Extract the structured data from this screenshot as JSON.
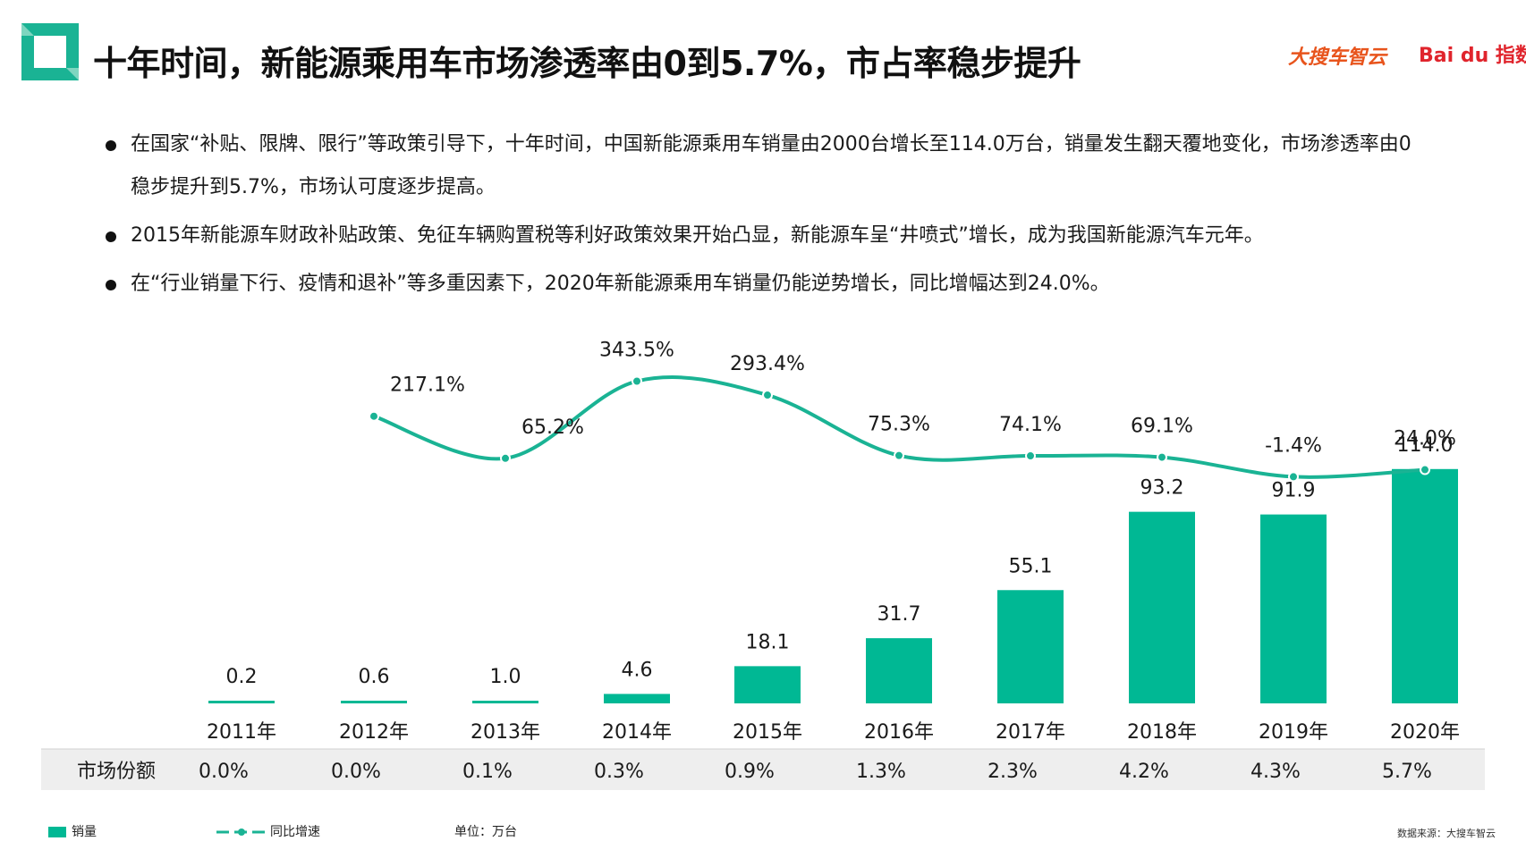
{
  "header": {
    "title": "十年时间，新能源乘用车市场渗透率由0到5.7%，市占率稳步提升",
    "brand_primary": "大搜车智云",
    "brand_secondary": "Bai du 指数"
  },
  "bullets": [
    "在国家“补贴、限牌、限行”等政策引导下，十年时间，中国新能源乘用车销量由2000台增长至114.0万台，销量发生翻天覆地变化，市场渗透率由0稳步提升到5.7%，市场认可度逐步提高。",
    "2015年新能源车财政补贴政策、免征车辆购置税等利好政策效果开始凸显，新能源车呈“井喷式”增长，成为我国新能源汽车元年。",
    "在“行业销量下行、疫情和退补”等多重因素下，2020年新能源乘用车销量仍能逆势增长，同比增幅达到24.0%。"
  ],
  "chart_data": {
    "type": "bar",
    "categories": [
      "2011年",
      "2012年",
      "2013年",
      "2014年",
      "2015年",
      "2016年",
      "2017年",
      "2018年",
      "2019年",
      "2020年"
    ],
    "series": [
      {
        "name": "销量",
        "type": "bar",
        "values": [
          0.2,
          0.6,
          1.0,
          4.6,
          18.1,
          31.7,
          55.1,
          93.2,
          91.9,
          114.0
        ],
        "labels": [
          "0.2",
          "0.6",
          "1.0",
          "4.6",
          "18.1",
          "31.7",
          "55.1",
          "93.2",
          "91.9",
          "114.0"
        ]
      },
      {
        "name": "同比增速",
        "type": "line",
        "values": [
          null,
          217.1,
          65.2,
          343.5,
          293.4,
          75.3,
          74.1,
          69.1,
          -1.4,
          24.0
        ],
        "labels": [
          "",
          "217.1%",
          "65.2%",
          "343.5%",
          "293.4%",
          "75.3%",
          "74.1%",
          "69.1%",
          "-1.4%",
          "24.0%"
        ]
      }
    ],
    "table": {
      "row_label": "市场份额",
      "values": [
        "0.0%",
        "0.0%",
        "0.1%",
        "0.3%",
        "0.9%",
        "1.3%",
        "2.3%",
        "4.2%",
        "4.3%",
        "5.7%"
      ]
    },
    "colors": {
      "bar": "#00b894",
      "line": "#1ab394",
      "table_bg": "#eeeeee"
    }
  },
  "legend": {
    "bar": "销量",
    "line": "同比增速",
    "unit": "单位：万台"
  },
  "source": "数据来源：大搜车智云"
}
